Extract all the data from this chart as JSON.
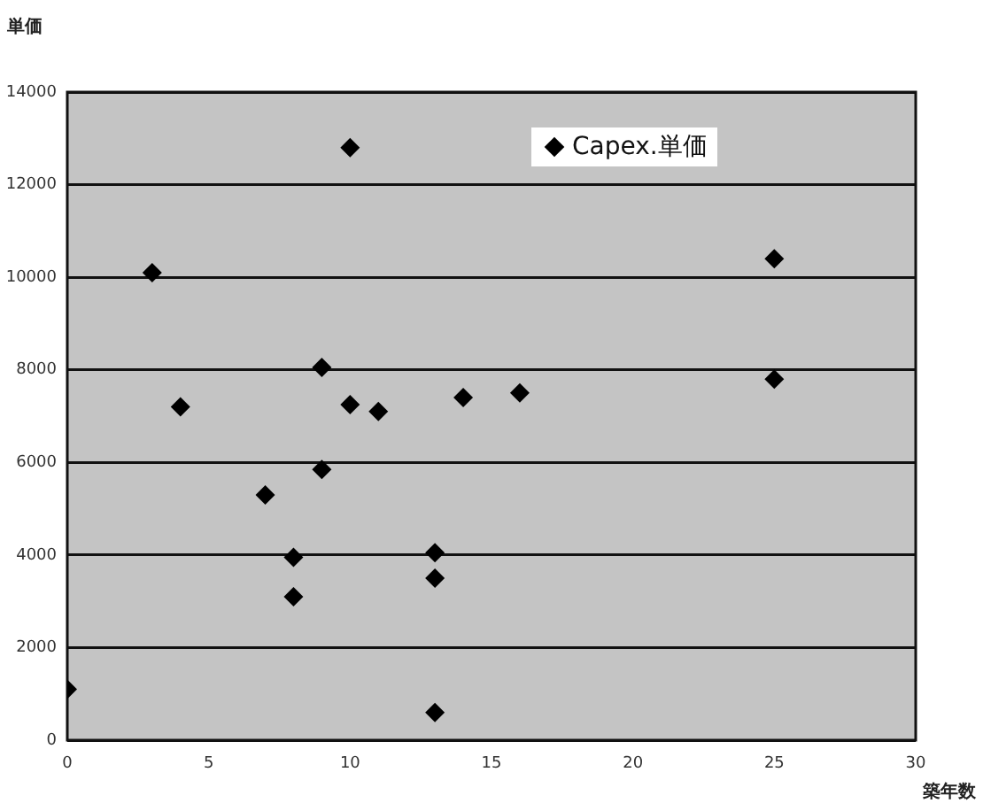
{
  "chart_data": {
    "type": "scatter",
    "xlabel": "築年数",
    "ylabel": "単価",
    "series": [
      {
        "name": "Capex.単価",
        "color": "#000000",
        "x": [
          0,
          3,
          4,
          7,
          8,
          8,
          9,
          9,
          10,
          10,
          11,
          13,
          13,
          13,
          14,
          16,
          25,
          25
        ],
        "values": [
          1100,
          10100,
          7200,
          5300,
          3950,
          3100,
          8050,
          5850,
          12800,
          7250,
          7100,
          4050,
          3500,
          600,
          7400,
          7500,
          10400,
          7800
        ]
      }
    ],
    "xlim": [
      0,
      30
    ],
    "xticks": [
      0,
      5,
      10,
      15,
      20,
      25,
      30
    ],
    "ylim": [
      0,
      14000
    ],
    "yticks": [
      0,
      2000,
      4000,
      6000,
      8000,
      10000,
      12000,
      14000
    ],
    "grid": "y",
    "legend": "top right",
    "marker": "diamond"
  }
}
